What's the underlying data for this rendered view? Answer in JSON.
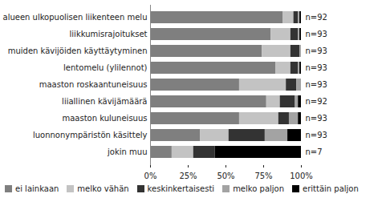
{
  "chart_data": {
    "type": "bar",
    "orientation": "horizontal",
    "stacked": true,
    "grid": false,
    "legend": "bottom",
    "categories": [
      "alueen ulkopuolisen liikenteen melu",
      "liikkumisrajoitukset",
      "muiden kävijöiden käyttäytyminen",
      "lentomelu (ylilennot)",
      "maaston roskaantuneisuus",
      "liiallinen kävijämäärä",
      "maaston kuluneisuus",
      "luonnonympäristön käsittely",
      "jokin muu"
    ],
    "annotations": [
      "n=92",
      "n=93",
      "n=93",
      "n=93",
      "n=93",
      "n=92",
      "n=93",
      "n=93",
      "n=7"
    ],
    "series": [
      {
        "name": "ei lainkaan",
        "color": "#7f7f7f",
        "values": [
          88,
          80,
          74,
          83,
          59,
          77,
          59,
          33,
          14.3
        ]
      },
      {
        "name": "melko vähän",
        "color": "#c3c3c3",
        "values": [
          7,
          13,
          19,
          10,
          31,
          9,
          26,
          19,
          14.3
        ]
      },
      {
        "name": "keskinkertaisesti",
        "color": "#333333",
        "values": [
          3,
          5,
          6,
          5,
          7,
          10,
          7,
          24,
          14.3
        ]
      },
      {
        "name": "melko paljon",
        "color": "#a3a3a3",
        "values": [
          1,
          1,
          1,
          1,
          3,
          2,
          6,
          15,
          0
        ]
      },
      {
        "name": "erittäin paljon",
        "color": "#000000",
        "values": [
          1,
          1,
          0,
          1,
          0,
          2,
          2,
          9,
          57.1
        ]
      }
    ],
    "xlim": [
      0,
      100
    ],
    "xticks": [
      {
        "value": 0,
        "label": "0%"
      },
      {
        "value": 25,
        "label": "25%"
      },
      {
        "value": 50,
        "label": "50%"
      },
      {
        "value": 75,
        "label": "75%"
      },
      {
        "value": 100,
        "label": "100%"
      }
    ]
  }
}
